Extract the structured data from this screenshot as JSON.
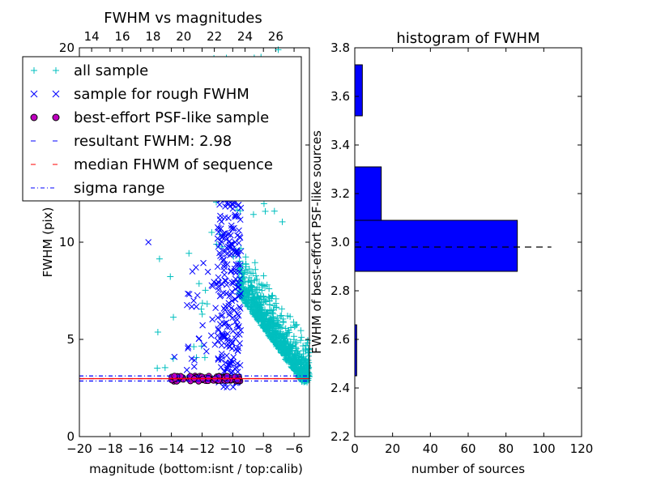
{
  "chart_data": [
    {
      "type": "scatter",
      "title": "FWHM vs magnitudes",
      "xlabel": "magnitude (bottom:isnt / top:calib)",
      "ylabel": "FWHM (pix)",
      "xlim": [
        -20,
        -5
      ],
      "ylim": [
        0,
        20
      ],
      "x_ticks": [
        -20,
        -18,
        -16,
        -14,
        -12,
        -10,
        -8,
        -6
      ],
      "x_tick_labels": [
        "−20",
        "−18",
        "−16",
        "−14",
        "−12",
        "−10",
        "−8",
        "−6"
      ],
      "y_ticks": [
        0,
        5,
        10,
        15,
        20
      ],
      "y_tick_labels": [
        "0",
        "5",
        "10",
        "15",
        "20"
      ],
      "top_axis": {
        "ticks": [
          14,
          16,
          18,
          20,
          22,
          24,
          26
        ],
        "tick_labels": [
          "14",
          "16",
          "18",
          "20",
          "22",
          "24",
          "26"
        ],
        "offset": 33.2
      },
      "grid": false,
      "legend_position": "top-left",
      "series": [
        {
          "name": "all sample",
          "marker": "+",
          "color": "#00bfbf",
          "description": "dense cloud concentrated at magnitudes -9.5 to -5, FWHM 2-13, with scattered points up to 20"
        },
        {
          "name": "sample for rough FWHM",
          "marker": "x",
          "color": "#0000ff",
          "description": "vertical band at magnitudes -11 to -9.5, FWHM 2.5-13, plus sparse points at -15.5 (10) and -14 (4)"
        },
        {
          "name": "best-effort PSF-like sample",
          "marker": "o",
          "color": "#bf00bf",
          "description": "tight row at FWHM ~3.0 between magnitudes -14 and -9.5"
        }
      ],
      "lines": [
        {
          "name": "resultant FWHM: 2.98",
          "y": 2.98,
          "style": "dashed",
          "color": "#0000ff"
        },
        {
          "name": "median FHWM of sequence",
          "y": 2.98,
          "style": "dashed",
          "color": "#ff0000"
        },
        {
          "name": "sigma range",
          "y": [
            2.86,
            3.12
          ],
          "style": "dashdot",
          "color": "#0000ff"
        }
      ]
    },
    {
      "type": "bar",
      "orientation": "horizontal",
      "title": "histogram of FWHM",
      "xlabel": "number of sources",
      "ylabel": "FWHM of best-effort PSF-like sources",
      "xlim": [
        0,
        120
      ],
      "ylim": [
        2.2,
        3.8
      ],
      "x_ticks": [
        0,
        20,
        40,
        60,
        80,
        100,
        120
      ],
      "x_tick_labels": [
        "0",
        "20",
        "40",
        "60",
        "80",
        "100",
        "120"
      ],
      "y_ticks": [
        2.2,
        2.4,
        2.6,
        2.8,
        3.0,
        3.2,
        3.4,
        3.6,
        3.8
      ],
      "y_tick_labels": [
        "2.2",
        "2.4",
        "2.6",
        "2.8",
        "3.0",
        "3.2",
        "3.4",
        "3.6",
        "3.8"
      ],
      "grid": false,
      "color": "#0000ff",
      "bins": [
        {
          "low": 2.45,
          "high": 2.66,
          "count": 1
        },
        {
          "low": 2.88,
          "high": 3.09,
          "count": 86
        },
        {
          "low": 3.09,
          "high": 3.31,
          "count": 14
        },
        {
          "low": 3.52,
          "high": 3.73,
          "count": 4
        }
      ],
      "reference_line": {
        "y": 2.98,
        "x_range": [
          0,
          104
        ],
        "style": "dashed",
        "color": "#000000"
      }
    }
  ]
}
